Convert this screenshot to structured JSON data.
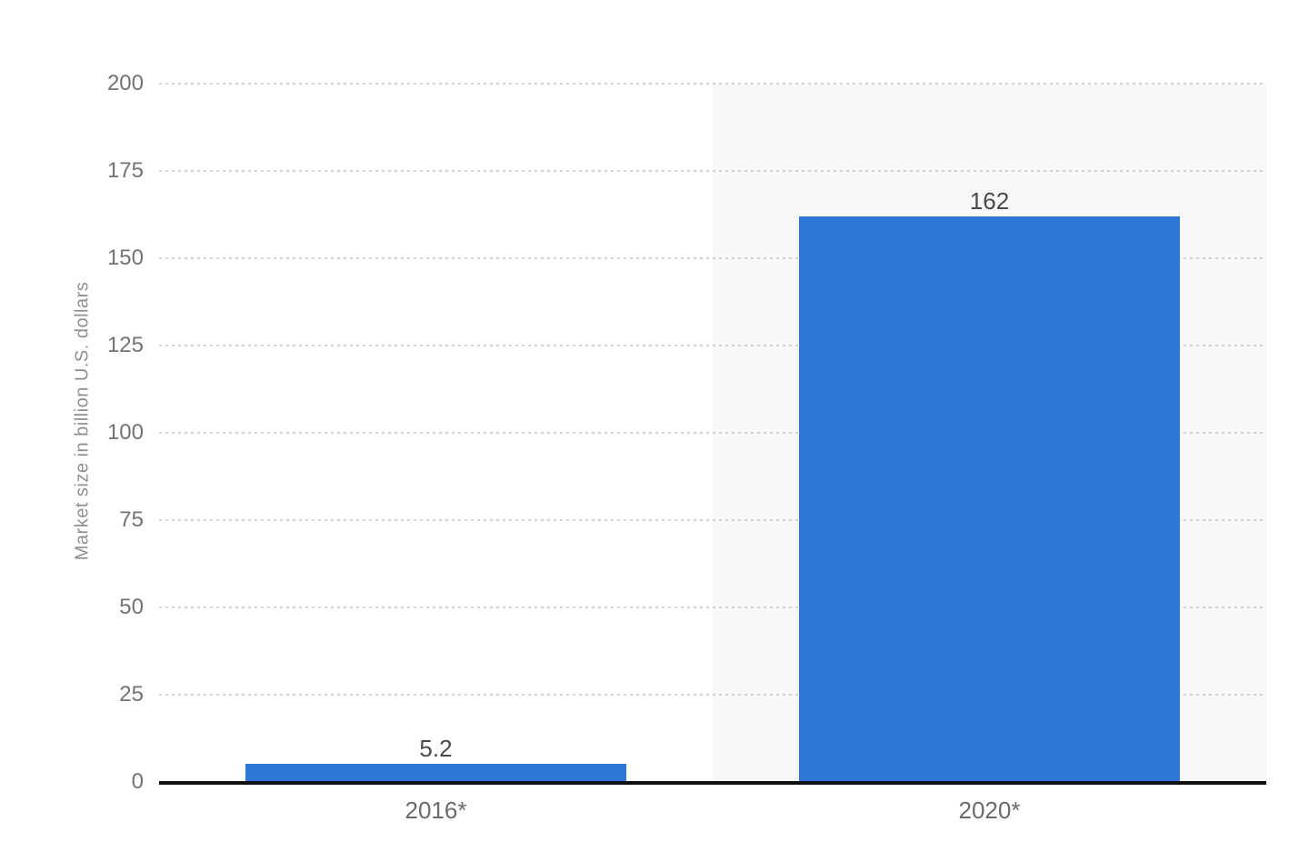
{
  "chart_data": {
    "type": "bar",
    "title": "",
    "xlabel": "",
    "ylabel": "Market size in billion U.S. dollars",
    "categories": [
      "2016*",
      "2020*"
    ],
    "values": [
      5.2,
      162
    ],
    "data_labels": [
      "5.2",
      "162"
    ],
    "ylim": [
      0,
      200
    ],
    "yticks": [
      0,
      25,
      50,
      75,
      100,
      125,
      150,
      175,
      200
    ],
    "grid": "horizontal-dotted",
    "legend": "none",
    "highlighted_category_index": 1,
    "colors": {
      "bar": "#2e78d8",
      "highlight_band": "#f8f8f8",
      "gridline": "#d2d2d2",
      "axis_line": "#101010",
      "tick_label": "#737373",
      "x_label": "#6b6b6b",
      "data_label": "#4a4a4a",
      "y_title": "#8f8f8f",
      "background": "#ffffff"
    }
  }
}
